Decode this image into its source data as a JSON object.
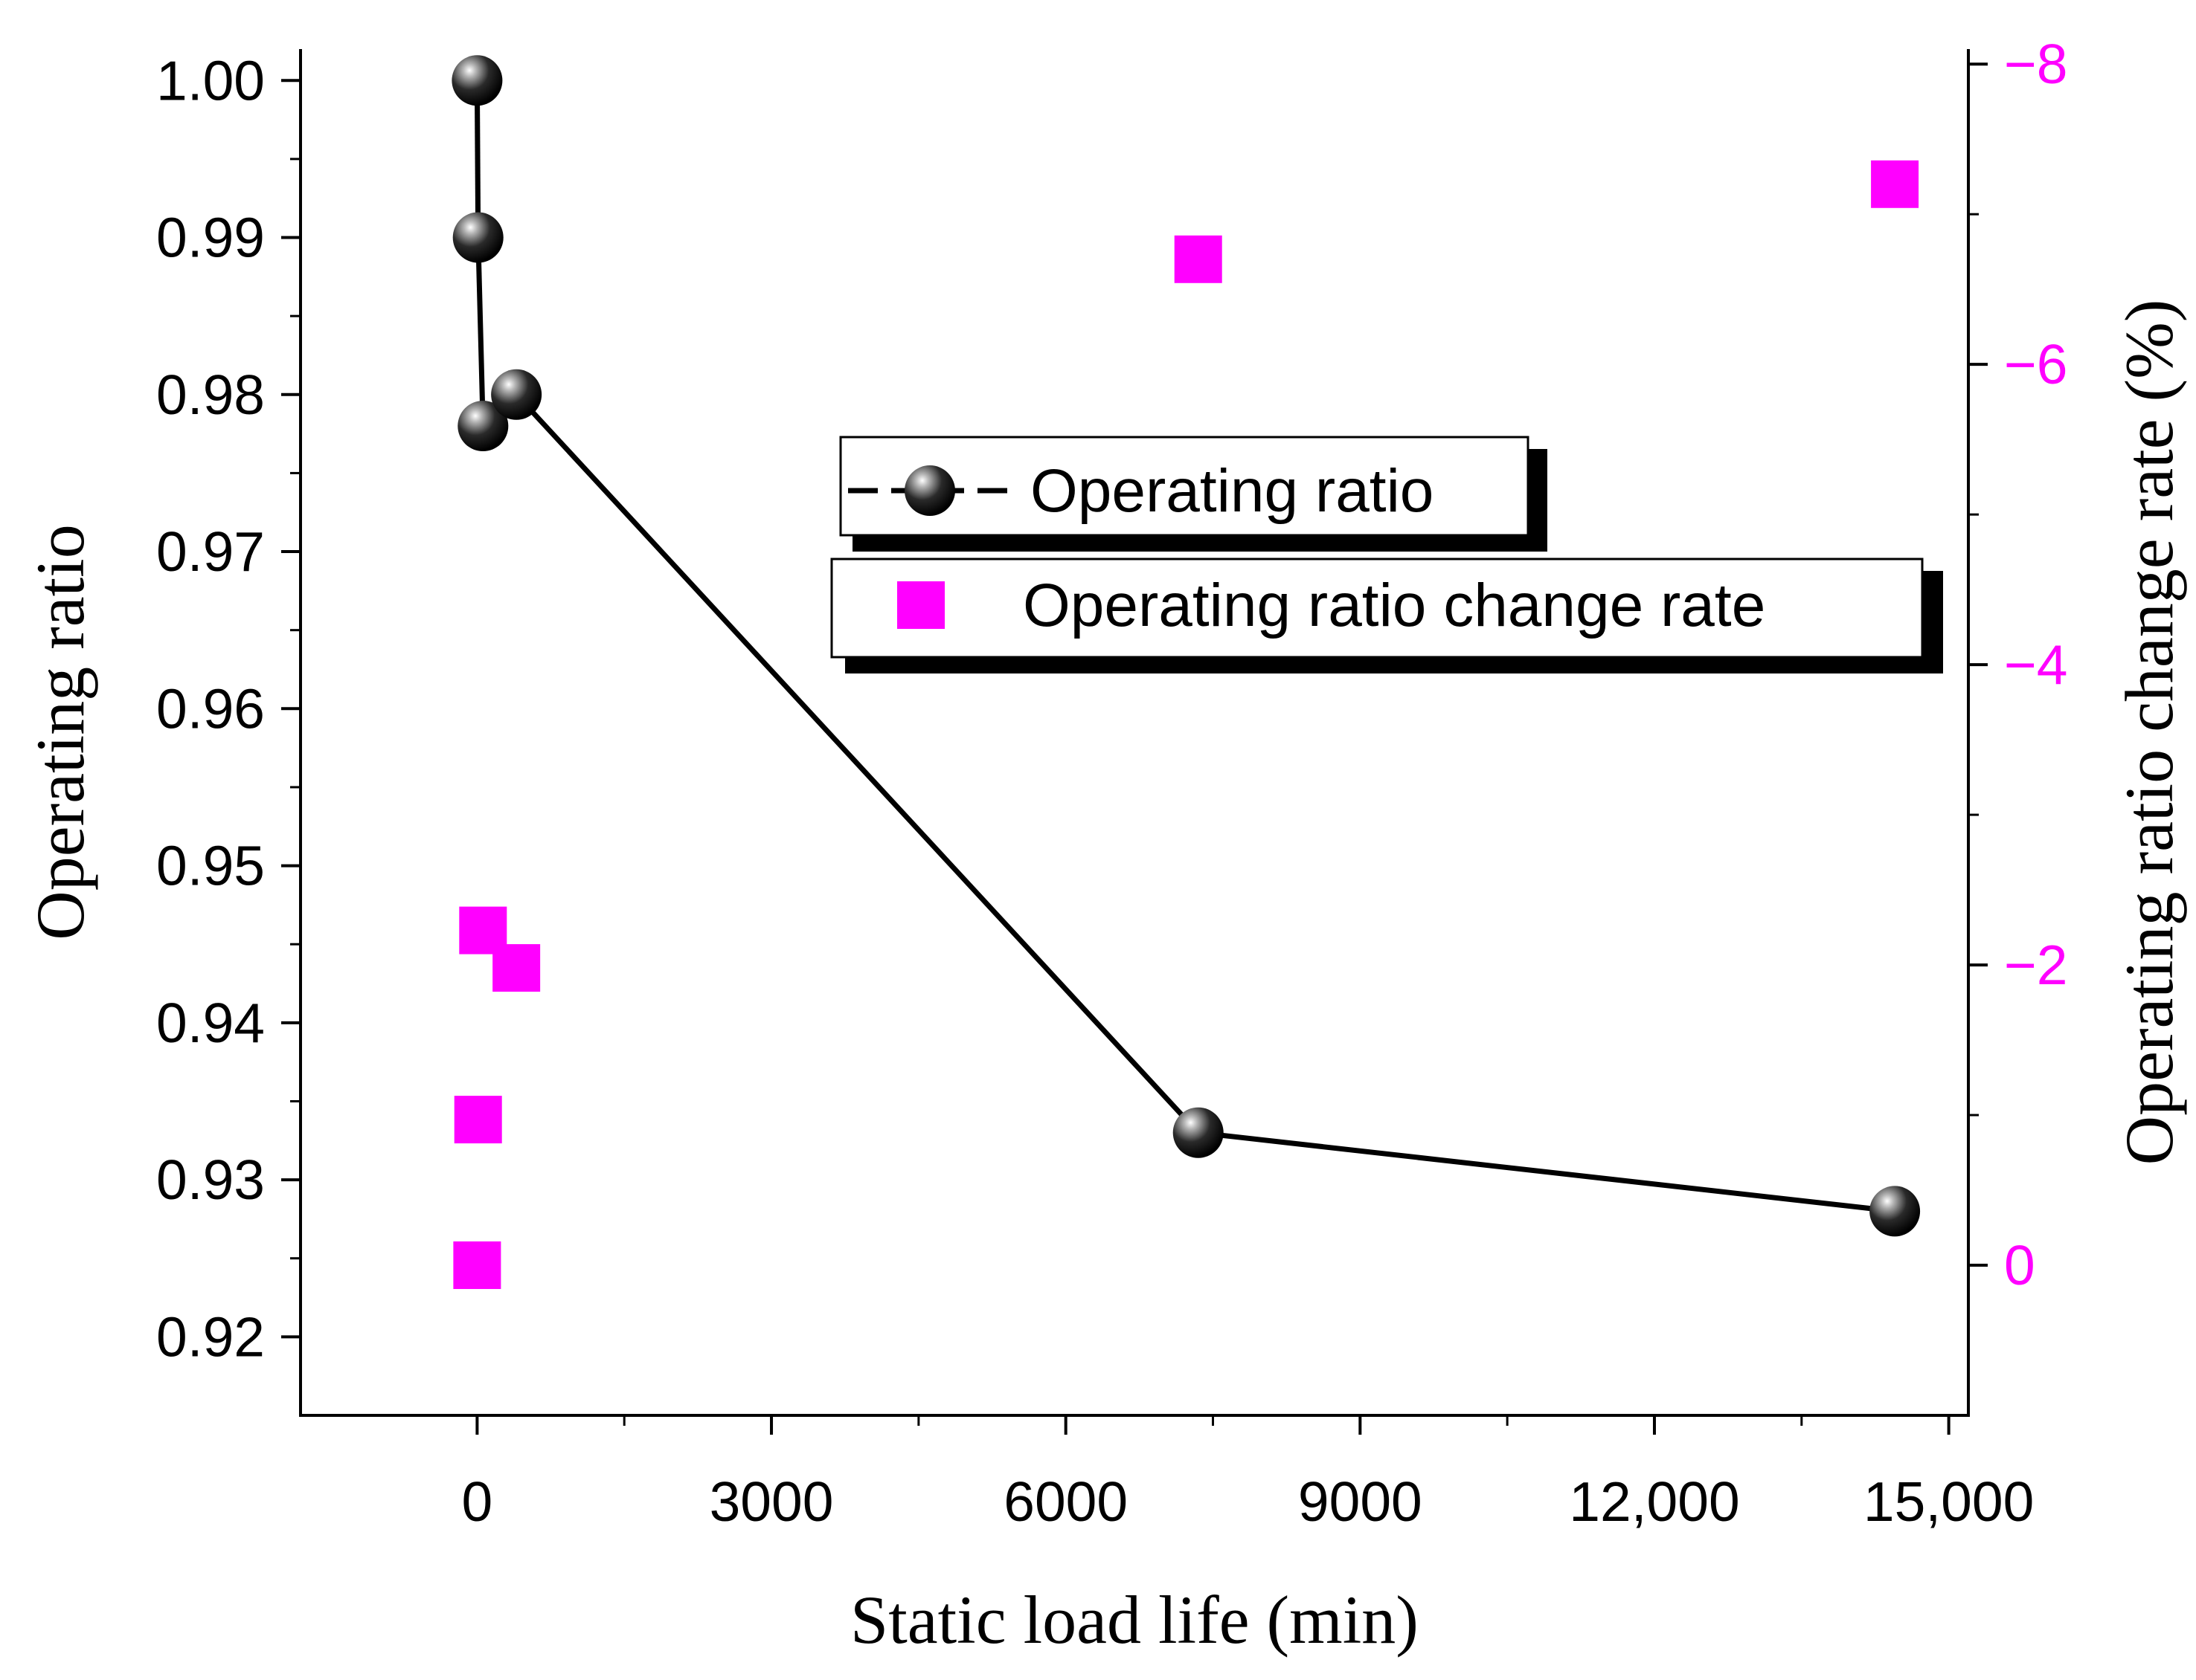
{
  "chart_data": {
    "type": "scatter",
    "title": "",
    "xlabel": "Static load life (min)",
    "ylabel": "Operating ratio",
    "y2label": "Operating ratio change rate (%)",
    "xlim": [
      -1800,
      15200
    ],
    "ylim": [
      0.915,
      1.002
    ],
    "y2lim": [
      1,
      -8.1
    ],
    "xticks": [
      0,
      3000,
      6000,
      9000,
      12000,
      15000
    ],
    "xtick_labels": [
      "0",
      "3000",
      "6000",
      "9000",
      "12,000",
      "15,000"
    ],
    "yticks": [
      0.92,
      0.93,
      0.94,
      0.95,
      0.96,
      0.97,
      0.98,
      0.99,
      1.0
    ],
    "ytick_labels": [
      "0.92",
      "0.93",
      "0.94",
      "0.95",
      "0.96",
      "0.97",
      "0.98",
      "0.99",
      "1.00"
    ],
    "y2ticks": [
      0,
      -2,
      -4,
      -6,
      -8
    ],
    "y2tick_labels": [
      "0",
      "−2",
      "−4",
      "−6",
      "−8"
    ],
    "grid": false,
    "legend_position": "center-right",
    "series": [
      {
        "name": "Operating ratio",
        "kind": "line-marker",
        "axis": "left",
        "color": "#000000",
        "x": [
          0,
          10,
          60,
          400,
          7350,
          14450
        ],
        "y": [
          1.0,
          0.99,
          0.978,
          0.98,
          0.933,
          0.928
        ]
      },
      {
        "name": "Operating ratio change rate",
        "kind": "marker",
        "axis": "right",
        "color": "#ff00ff",
        "x": [
          0,
          10,
          60,
          400,
          7350,
          14450
        ],
        "y": [
          0,
          -0.97,
          -2.23,
          -1.98,
          -6.7,
          -7.2
        ]
      }
    ]
  }
}
